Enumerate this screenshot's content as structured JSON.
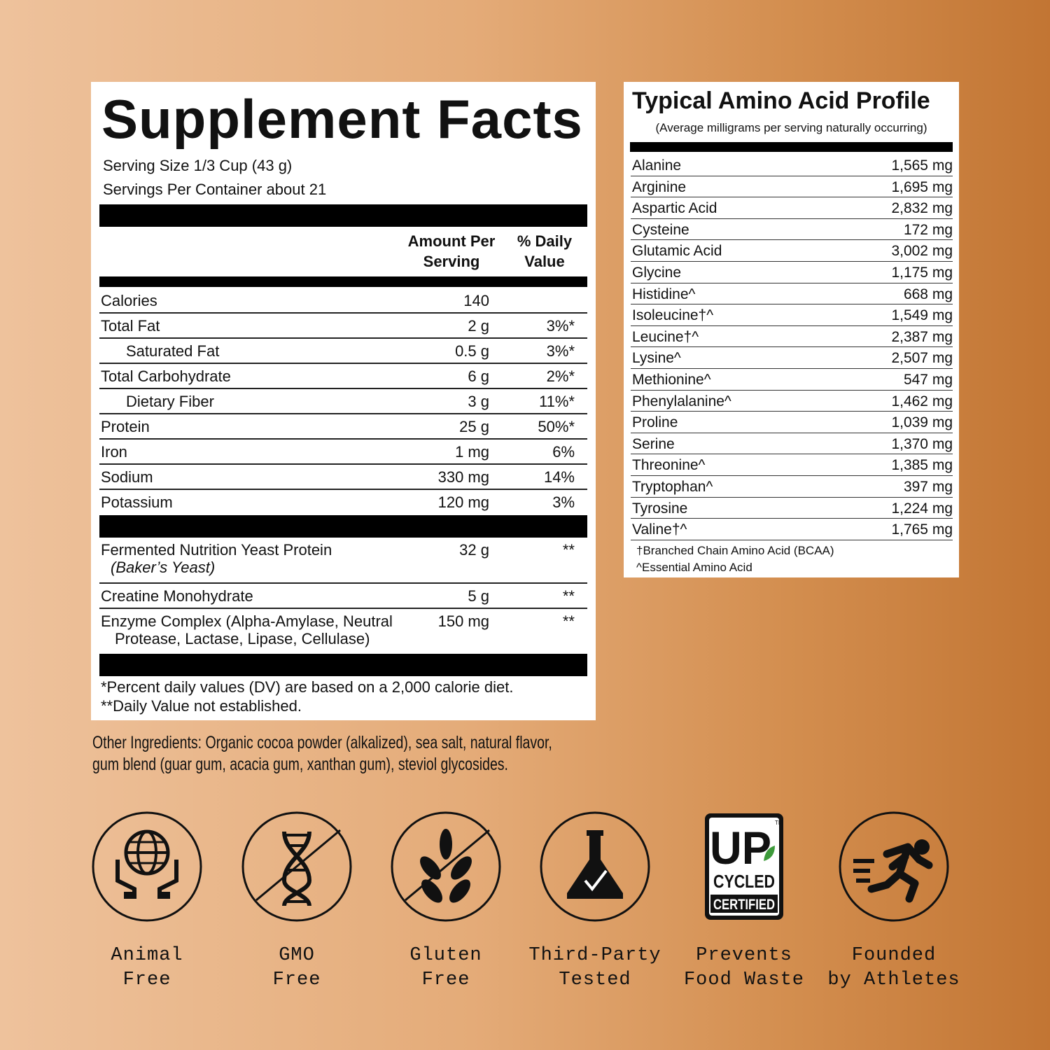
{
  "supplement_facts": {
    "title": "Supplement Facts",
    "serving_size": "Serving Size 1/3 Cup (43 g)",
    "servings_per_container": "Servings Per Container about 21",
    "header_amount_1": "Amount Per",
    "header_amount_2": "Serving",
    "header_dv_1": "% Daily",
    "header_dv_2": "Value",
    "nutrients": [
      {
        "name": "Calories",
        "amount": "140",
        "dv": ""
      },
      {
        "name": "Total Fat",
        "amount": "2 g",
        "dv": "3%*"
      },
      {
        "name": "Saturated Fat",
        "amount": "0.5 g",
        "dv": "3%*"
      },
      {
        "name": "Total Carbohydrate",
        "amount": "6 g",
        "dv": "2%*"
      },
      {
        "name": "Dietary Fiber",
        "amount": "3 g",
        "dv": "11%*"
      },
      {
        "name": "Protein",
        "amount": "25 g",
        "dv": "50%*"
      },
      {
        "name": "Iron",
        "amount": "1 mg",
        "dv": "6%"
      },
      {
        "name": "Sodium",
        "amount": "330 mg",
        "dv": "14%"
      },
      {
        "name": "Potassium",
        "amount": "120 mg",
        "dv": "3%"
      }
    ],
    "ingredients": [
      {
        "name": "Fermented Nutrition Yeast Protein",
        "sub": "(Baker’s Yeast)",
        "amount": "32 g",
        "dv": "**"
      },
      {
        "name": "Creatine Monohydrate",
        "amount": "5 g",
        "dv": "**"
      },
      {
        "name": "Enzyme Complex (Alpha-Amylase, Neutral",
        "sub": "Protease, Lactase, Lipase, Cellulase)",
        "amount": "150 mg",
        "dv": "**"
      }
    ],
    "footnote_1": "*Percent daily values (DV) are based on a 2,000 calorie diet.",
    "footnote_2": "**Daily Value not established."
  },
  "amino_profile": {
    "title": "Typical Amino Acid Profile",
    "subtitle": "(Average milligrams per serving naturally occurring)",
    "rows": [
      {
        "name": "Alanine",
        "value": "1,565 mg"
      },
      {
        "name": "Arginine",
        "value": "1,695 mg"
      },
      {
        "name": "Aspartic Acid",
        "value": "2,832 mg"
      },
      {
        "name": "Cysteine",
        "value": "172 mg"
      },
      {
        "name": "Glutamic Acid",
        "value": "3,002 mg"
      },
      {
        "name": "Glycine",
        "value": "1,175 mg"
      },
      {
        "name": "Histidine^",
        "value": "668 mg"
      },
      {
        "name": "Isoleucine†^",
        "value": "1,549 mg"
      },
      {
        "name": "Leucine†^",
        "value": "2,387 mg"
      },
      {
        "name": "Lysine^",
        "value": "2,507 mg"
      },
      {
        "name": "Methionine^",
        "value": "547 mg"
      },
      {
        "name": "Phenylalanine^",
        "value": "1,462 mg"
      },
      {
        "name": "Proline",
        "value": "1,039 mg"
      },
      {
        "name": "Serine",
        "value": "1,370 mg"
      },
      {
        "name": "Threonine^",
        "value": "1,385 mg"
      },
      {
        "name": "Tryptophan^",
        "value": "397 mg"
      },
      {
        "name": "Tyrosine",
        "value": "1,224 mg"
      },
      {
        "name": "Valine†^",
        "value": "1,765 mg"
      }
    ],
    "note_1": "†Branched Chain Amino Acid (BCAA)",
    "note_2": "^Essential Amino Acid"
  },
  "other_ingredients_1": "Other Ingredients: Organic cocoa powder (alkalized), sea salt, natural flavor,",
  "other_ingredients_2": "gum blend (guar gum, acacia gum, xanthan gum), steviol glycosides.",
  "badges": [
    {
      "icon": "globe-hands-icon",
      "line1": "Animal",
      "line2": "Free"
    },
    {
      "icon": "dna-crossed-icon",
      "line1": "GMO",
      "line2": "Free"
    },
    {
      "icon": "wheat-crossed-icon",
      "line1": "Gluten",
      "line2": "Free"
    },
    {
      "icon": "flask-check-icon",
      "line1": "Third-Party",
      "line2": "Tested"
    },
    {
      "icon": "upcycled-certified-logo",
      "line1": "Prevents",
      "line2": "Food Waste",
      "logo_text": [
        "UP",
        "CYCLED",
        "CERTIFIED",
        "TM"
      ]
    },
    {
      "icon": "runner-icon",
      "line1": "Founded",
      "line2": "by Athletes"
    }
  ],
  "colors": {
    "bg_left": "#eec29c",
    "bg_right": "#c27533",
    "leaf_green": "#3d9a3a"
  }
}
